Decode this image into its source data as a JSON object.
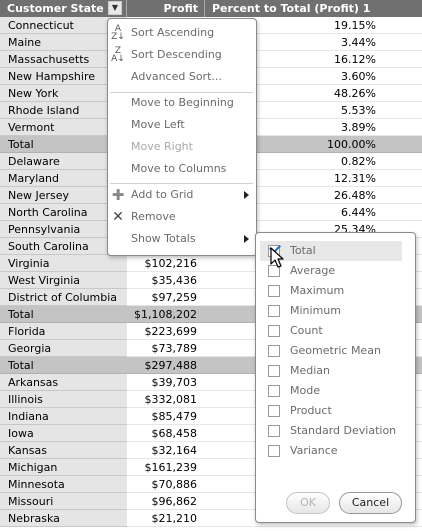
{
  "headers": {
    "state": "Customer State",
    "profit": "Profit",
    "pct": "Percent to Total (Profit) 1"
  },
  "rows": [
    {
      "state": "Connecticut",
      "profit": "",
      "pct": "19.15%",
      "total": false
    },
    {
      "state": "Maine",
      "profit": "",
      "pct": "3.44%",
      "total": false
    },
    {
      "state": "Massachusetts",
      "profit": "",
      "pct": "16.12%",
      "total": false
    },
    {
      "state": "New Hampshire",
      "profit": "",
      "pct": "3.60%",
      "total": false
    },
    {
      "state": "New York",
      "profit": "",
      "pct": "48.26%",
      "total": false
    },
    {
      "state": "Rhode Island",
      "profit": "",
      "pct": "5.53%",
      "total": false
    },
    {
      "state": "Vermont",
      "profit": "",
      "pct": "3.89%",
      "total": false
    },
    {
      "state": "Total",
      "profit": "",
      "pct": "100.00%",
      "total": true
    },
    {
      "state": "Delaware",
      "profit": "",
      "pct": "0.82%",
      "total": false
    },
    {
      "state": "Maryland",
      "profit": "",
      "pct": "12.31%",
      "total": false
    },
    {
      "state": "New Jersey",
      "profit": "",
      "pct": "26.48%",
      "total": false
    },
    {
      "state": "North Carolina",
      "profit": "",
      "pct": "6.44%",
      "total": false
    },
    {
      "state": "Pennsylvania",
      "profit": "",
      "pct": "25.34%",
      "total": false
    },
    {
      "state": "South Carolina",
      "profit": "",
      "pct": "",
      "total": false
    },
    {
      "state": "Virginia",
      "profit": "$102,216",
      "pct": "",
      "total": false
    },
    {
      "state": "West Virginia",
      "profit": "$35,436",
      "pct": "",
      "total": false
    },
    {
      "state": "District of Columbia",
      "profit": "$97,259",
      "pct": "",
      "total": false
    },
    {
      "state": "Total",
      "profit": "$1,108,202",
      "pct": "",
      "total": true
    },
    {
      "state": "Florida",
      "profit": "$223,699",
      "pct": "",
      "total": false
    },
    {
      "state": "Georgia",
      "profit": "$73,789",
      "pct": "",
      "total": false
    },
    {
      "state": "Total",
      "profit": "$297,488",
      "pct": "",
      "total": true
    },
    {
      "state": "Arkansas",
      "profit": "$39,703",
      "pct": "",
      "total": false
    },
    {
      "state": "Illinois",
      "profit": "$332,081",
      "pct": "",
      "total": false
    },
    {
      "state": "Indiana",
      "profit": "$85,479",
      "pct": "",
      "total": false
    },
    {
      "state": "Iowa",
      "profit": "$68,458",
      "pct": "",
      "total": false
    },
    {
      "state": "Kansas",
      "profit": "$32,164",
      "pct": "",
      "total": false
    },
    {
      "state": "Michigan",
      "profit": "$161,239",
      "pct": "",
      "total": false
    },
    {
      "state": "Minnesota",
      "profit": "$70,886",
      "pct": "",
      "total": false
    },
    {
      "state": "Missouri",
      "profit": "$96,862",
      "pct": "",
      "total": false
    },
    {
      "state": "Nebraska",
      "profit": "$21,210",
      "pct": "",
      "total": false
    }
  ],
  "context_menu": {
    "sort_ascending": "Sort Ascending",
    "sort_descending": "Sort Descending",
    "advanced_sort": "Advanced Sort...",
    "move_to_beginning": "Move to Beginning",
    "move_left": "Move Left",
    "move_right": "Move Right",
    "move_to_columns": "Move to Columns",
    "add_to_grid": "Add to Grid",
    "remove": "Remove",
    "show_totals": "Show Totals",
    "icons": {
      "sort_ascending": "sort-az-icon",
      "sort_descending": "sort-za-icon",
      "add_to_grid": "plus-icon",
      "remove": "x-icon"
    }
  },
  "totals_menu": {
    "options": [
      {
        "label": "Total",
        "checked": true
      },
      {
        "label": "Average",
        "checked": false
      },
      {
        "label": "Maximum",
        "checked": false
      },
      {
        "label": "Minimum",
        "checked": false
      },
      {
        "label": "Count",
        "checked": false
      },
      {
        "label": "Geometric Mean",
        "checked": false
      },
      {
        "label": "Median",
        "checked": false
      },
      {
        "label": "Mode",
        "checked": false
      },
      {
        "label": "Product",
        "checked": false
      },
      {
        "label": "Standard Deviation",
        "checked": false
      },
      {
        "label": "Variance",
        "checked": false
      }
    ],
    "ok": "OK",
    "cancel": "Cancel"
  },
  "colors": {
    "header_bg": "#707070",
    "total_row_bg": "#c4c4c4",
    "row_header_bg": "#e5e5e5",
    "check_color": "#1d6fbf"
  }
}
